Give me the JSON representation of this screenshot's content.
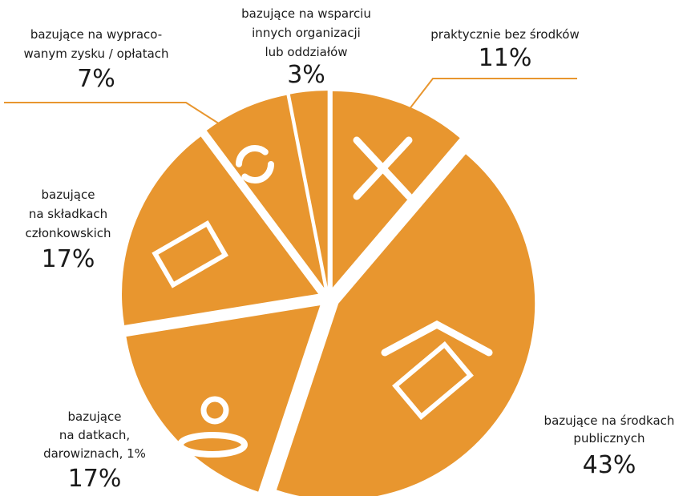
{
  "chart_data": {
    "type": "pie",
    "labels": [
      [
        "praktycznie bez środków"
      ],
      [
        "bazujące na środkach",
        "publicznych"
      ],
      [
        "bazujące",
        "na datkach,",
        "darowiznach, 1%"
      ],
      [
        "bazujące",
        "na składkach",
        "członkowskich"
      ],
      [
        "bazujące na wypraco-",
        "wanym zysku / opłatach"
      ],
      [
        "bazujące na wsparciu",
        "innych organizacji",
        "lub oddziałów"
      ]
    ],
    "values": [
      11,
      43,
      17,
      17,
      7,
      3
    ],
    "value_labels": [
      "11%",
      "43%",
      "17%",
      "17%",
      "7%",
      "3%"
    ],
    "color": "#e8962f"
  }
}
